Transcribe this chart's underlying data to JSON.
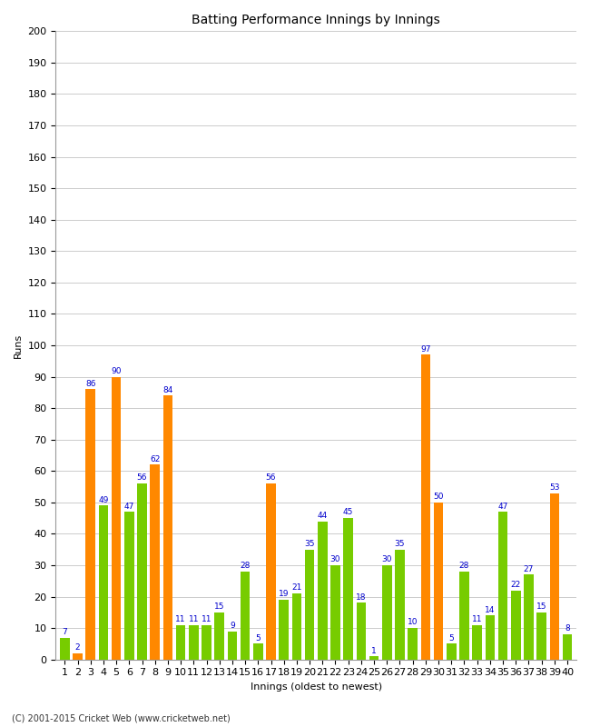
{
  "innings": [
    1,
    2,
    3,
    4,
    5,
    6,
    7,
    8,
    9,
    10,
    11,
    12,
    13,
    14,
    15,
    16,
    17,
    18,
    19,
    20,
    21,
    22,
    23,
    24,
    25,
    26,
    27,
    28,
    29,
    30,
    31,
    32,
    33,
    34,
    35,
    36,
    37,
    38,
    39,
    40
  ],
  "values": [
    7,
    2,
    86,
    49,
    90,
    47,
    56,
    62,
    84,
    11,
    11,
    11,
    15,
    9,
    28,
    5,
    56,
    19,
    21,
    35,
    44,
    30,
    45,
    18,
    1,
    30,
    35,
    10,
    97,
    50,
    5,
    28,
    11,
    14,
    47,
    22,
    27,
    15,
    53,
    8
  ],
  "colors": [
    "#77cc00",
    "#ff8800",
    "#ff8800",
    "#77cc00",
    "#ff8800",
    "#77cc00",
    "#77cc00",
    "#ff8800",
    "#ff8800",
    "#77cc00",
    "#77cc00",
    "#77cc00",
    "#77cc00",
    "#77cc00",
    "#77cc00",
    "#77cc00",
    "#ff8800",
    "#77cc00",
    "#77cc00",
    "#77cc00",
    "#77cc00",
    "#77cc00",
    "#77cc00",
    "#77cc00",
    "#77cc00",
    "#77cc00",
    "#77cc00",
    "#77cc00",
    "#ff8800",
    "#ff8800",
    "#77cc00",
    "#77cc00",
    "#77cc00",
    "#77cc00",
    "#77cc00",
    "#77cc00",
    "#77cc00",
    "#77cc00",
    "#ff8800",
    "#77cc00"
  ],
  "title": "Batting Performance Innings by Innings",
  "xlabel": "Innings (oldest to newest)",
  "ylabel": "Runs",
  "ylim": [
    0,
    200
  ],
  "yticks": [
    0,
    10,
    20,
    30,
    40,
    50,
    60,
    70,
    80,
    90,
    100,
    110,
    120,
    130,
    140,
    150,
    160,
    170,
    180,
    190,
    200
  ],
  "label_color": "#0000cc",
  "label_fontsize": 6.5,
  "axis_fontsize": 8,
  "title_fontsize": 10,
  "footer": "(C) 2001-2015 Cricket Web (www.cricketweb.net)",
  "bg_color": "#ffffff",
  "plot_bg": "#ffffff"
}
